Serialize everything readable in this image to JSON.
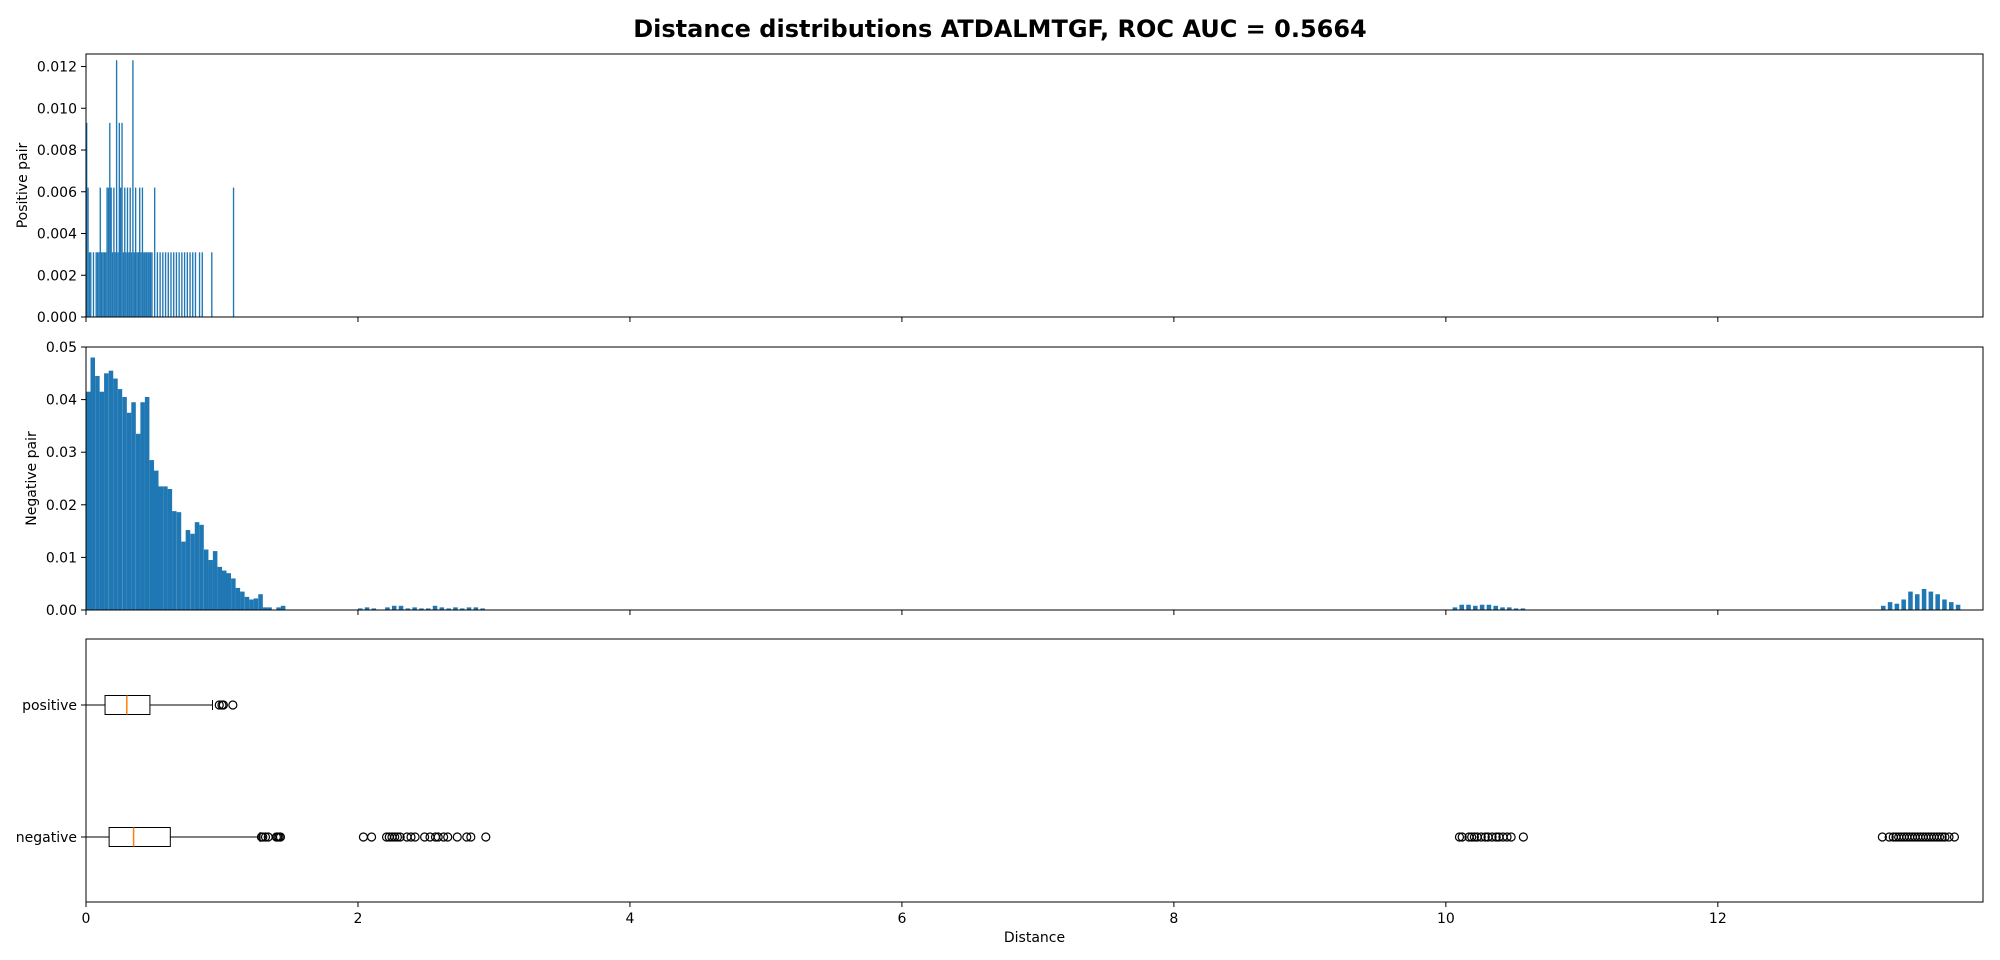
{
  "chart_data": {
    "title": "Distance distributions ATDALMTGF, ROC AUC = 0.5664",
    "shared_x": {
      "label": "Distance",
      "lim": [
        0,
        13.95
      ],
      "ticks": [
        0,
        2,
        4,
        6,
        8,
        10,
        12
      ],
      "tick_labels": [
        "0",
        "2",
        "4",
        "6",
        "8",
        "10",
        "12"
      ]
    },
    "panels": [
      {
        "type": "bar",
        "ylabel": "Positive pair",
        "ylim": [
          0,
          0.0126
        ],
        "yticks": [
          0,
          0.002,
          0.004,
          0.006,
          0.008,
          0.01,
          0.012
        ],
        "ytick_labels": [
          "0.000",
          "0.002",
          "0.004",
          "0.006",
          "0.008",
          "0.010",
          "0.012"
        ],
        "color": "#1f77b4",
        "bin_width": 0.01,
        "x": [
          0.0,
          0.01,
          0.02,
          0.03,
          0.05,
          0.07,
          0.08,
          0.09,
          0.1,
          0.11,
          0.12,
          0.13,
          0.14,
          0.15,
          0.16,
          0.17,
          0.18,
          0.19,
          0.2,
          0.21,
          0.22,
          0.23,
          0.24,
          0.25,
          0.26,
          0.27,
          0.28,
          0.29,
          0.3,
          0.31,
          0.32,
          0.33,
          0.34,
          0.35,
          0.36,
          0.37,
          0.38,
          0.39,
          0.4,
          0.41,
          0.42,
          0.43,
          0.44,
          0.45,
          0.46,
          0.47,
          0.48,
          0.5,
          0.52,
          0.54,
          0.56,
          0.58,
          0.6,
          0.62,
          0.64,
          0.66,
          0.68,
          0.7,
          0.72,
          0.74,
          0.76,
          0.78,
          0.8,
          0.83,
          0.85,
          0.92,
          1.08
        ],
        "values": [
          0.0093,
          0.0062,
          0.0031,
          0.0031,
          0.0031,
          0.0031,
          0.0031,
          0.0031,
          0.0062,
          0.0031,
          0.0031,
          0.0031,
          0.0031,
          0.0062,
          0.0062,
          0.0093,
          0.0062,
          0.0031,
          0.0062,
          0.0031,
          0.0123,
          0.0031,
          0.0093,
          0.0062,
          0.0093,
          0.0031,
          0.0062,
          0.0031,
          0.0062,
          0.0031,
          0.0062,
          0.0031,
          0.0123,
          0.0031,
          0.0062,
          0.0031,
          0.0031,
          0.0062,
          0.0031,
          0.0062,
          0.0031,
          0.0031,
          0.0031,
          0.0031,
          0.0031,
          0.0031,
          0.0031,
          0.0062,
          0.0031,
          0.0031,
          0.0031,
          0.0031,
          0.0031,
          0.0031,
          0.0031,
          0.0031,
          0.0031,
          0.0031,
          0.0031,
          0.0031,
          0.0031,
          0.0031,
          0.0031,
          0.0031,
          0.0031,
          0.0031,
          0.0062
        ]
      },
      {
        "type": "bar",
        "ylabel": "Negative pair",
        "ylim": [
          0,
          0.05
        ],
        "yticks": [
          0,
          0.01,
          0.02,
          0.03,
          0.04,
          0.05
        ],
        "ytick_labels": [
          "0.00",
          "0.01",
          "0.02",
          "0.03",
          "0.04",
          "0.05"
        ],
        "color": "#1f77b4",
        "bin_width": 0.0333,
        "x": [
          0.0,
          0.033,
          0.067,
          0.1,
          0.133,
          0.167,
          0.2,
          0.233,
          0.267,
          0.3,
          0.333,
          0.367,
          0.4,
          0.433,
          0.467,
          0.5,
          0.533,
          0.567,
          0.6,
          0.633,
          0.667,
          0.7,
          0.733,
          0.767,
          0.8,
          0.833,
          0.867,
          0.9,
          0.933,
          0.967,
          1.0,
          1.033,
          1.067,
          1.1,
          1.133,
          1.167,
          1.2,
          1.233,
          1.267,
          1.3,
          1.333,
          1.4,
          1.433,
          2.0,
          2.05,
          2.1,
          2.2,
          2.25,
          2.3,
          2.35,
          2.4,
          2.45,
          2.5,
          2.55,
          2.6,
          2.65,
          2.7,
          2.75,
          2.8,
          2.85,
          2.9,
          10.05,
          10.1,
          10.15,
          10.2,
          10.25,
          10.3,
          10.35,
          10.4,
          10.45,
          10.5,
          10.55,
          13.2,
          13.25,
          13.3,
          13.35,
          13.4,
          13.45,
          13.5,
          13.55,
          13.6,
          13.65,
          13.7,
          13.75
        ],
        "values": [
          0.0415,
          0.048,
          0.0445,
          0.0415,
          0.045,
          0.0455,
          0.044,
          0.042,
          0.0405,
          0.0375,
          0.0395,
          0.0335,
          0.0395,
          0.0405,
          0.0285,
          0.0265,
          0.0235,
          0.0235,
          0.023,
          0.0188,
          0.0186,
          0.013,
          0.0152,
          0.0145,
          0.0167,
          0.0162,
          0.0115,
          0.0095,
          0.0112,
          0.0082,
          0.0075,
          0.007,
          0.006,
          0.0042,
          0.0035,
          0.0025,
          0.002,
          0.0022,
          0.003,
          0.0005,
          0.0005,
          0.0005,
          0.0008,
          0.0003,
          0.0005,
          0.0003,
          0.0005,
          0.0008,
          0.0008,
          0.0003,
          0.0005,
          0.0003,
          0.0003,
          0.0008,
          0.0005,
          0.0003,
          0.0005,
          0.0003,
          0.0005,
          0.0005,
          0.0003,
          0.0005,
          0.001,
          0.001,
          0.0008,
          0.001,
          0.001,
          0.0008,
          0.0005,
          0.0005,
          0.0003,
          0.0003,
          0.0008,
          0.0015,
          0.0012,
          0.002,
          0.0035,
          0.003,
          0.004,
          0.0035,
          0.003,
          0.002,
          0.0015,
          0.001
        ]
      },
      {
        "type": "boxplot",
        "orientation": "horizontal",
        "categories": [
          "positive",
          "negative"
        ],
        "median_color": "#ff7f0e",
        "boxes": [
          {
            "label": "positive",
            "whisker_low": 0.0,
            "q1": 0.14,
            "median": 0.3,
            "q3": 0.47,
            "whisker_high": 0.93,
            "fliers": [
              0.98,
              1.0,
              1.01,
              1.08
            ]
          },
          {
            "label": "negative",
            "whisker_low": 0.0,
            "q1": 0.17,
            "median": 0.35,
            "q3": 0.62,
            "whisker_high": 1.28,
            "fliers": [
              1.29,
              1.3,
              1.32,
              1.34,
              1.4,
              1.41,
              1.42,
              1.43,
              2.04,
              2.1,
              2.21,
              2.23,
              2.25,
              2.27,
              2.29,
              2.31,
              2.36,
              2.39,
              2.42,
              2.49,
              2.53,
              2.57,
              2.59,
              2.63,
              2.66,
              2.73,
              2.8,
              2.83,
              2.94,
              10.1,
              10.12,
              10.17,
              10.19,
              10.21,
              10.23,
              10.26,
              10.29,
              10.31,
              10.34,
              10.37,
              10.39,
              10.42,
              10.45,
              10.48,
              10.57,
              13.21,
              13.26,
              13.29,
              13.31,
              13.33,
              13.35,
              13.37,
              13.39,
              13.41,
              13.43,
              13.45,
              13.47,
              13.49,
              13.51,
              13.53,
              13.55,
              13.57,
              13.59,
              13.61,
              13.63,
              13.65,
              13.67,
              13.7,
              13.74
            ]
          }
        ]
      }
    ]
  }
}
